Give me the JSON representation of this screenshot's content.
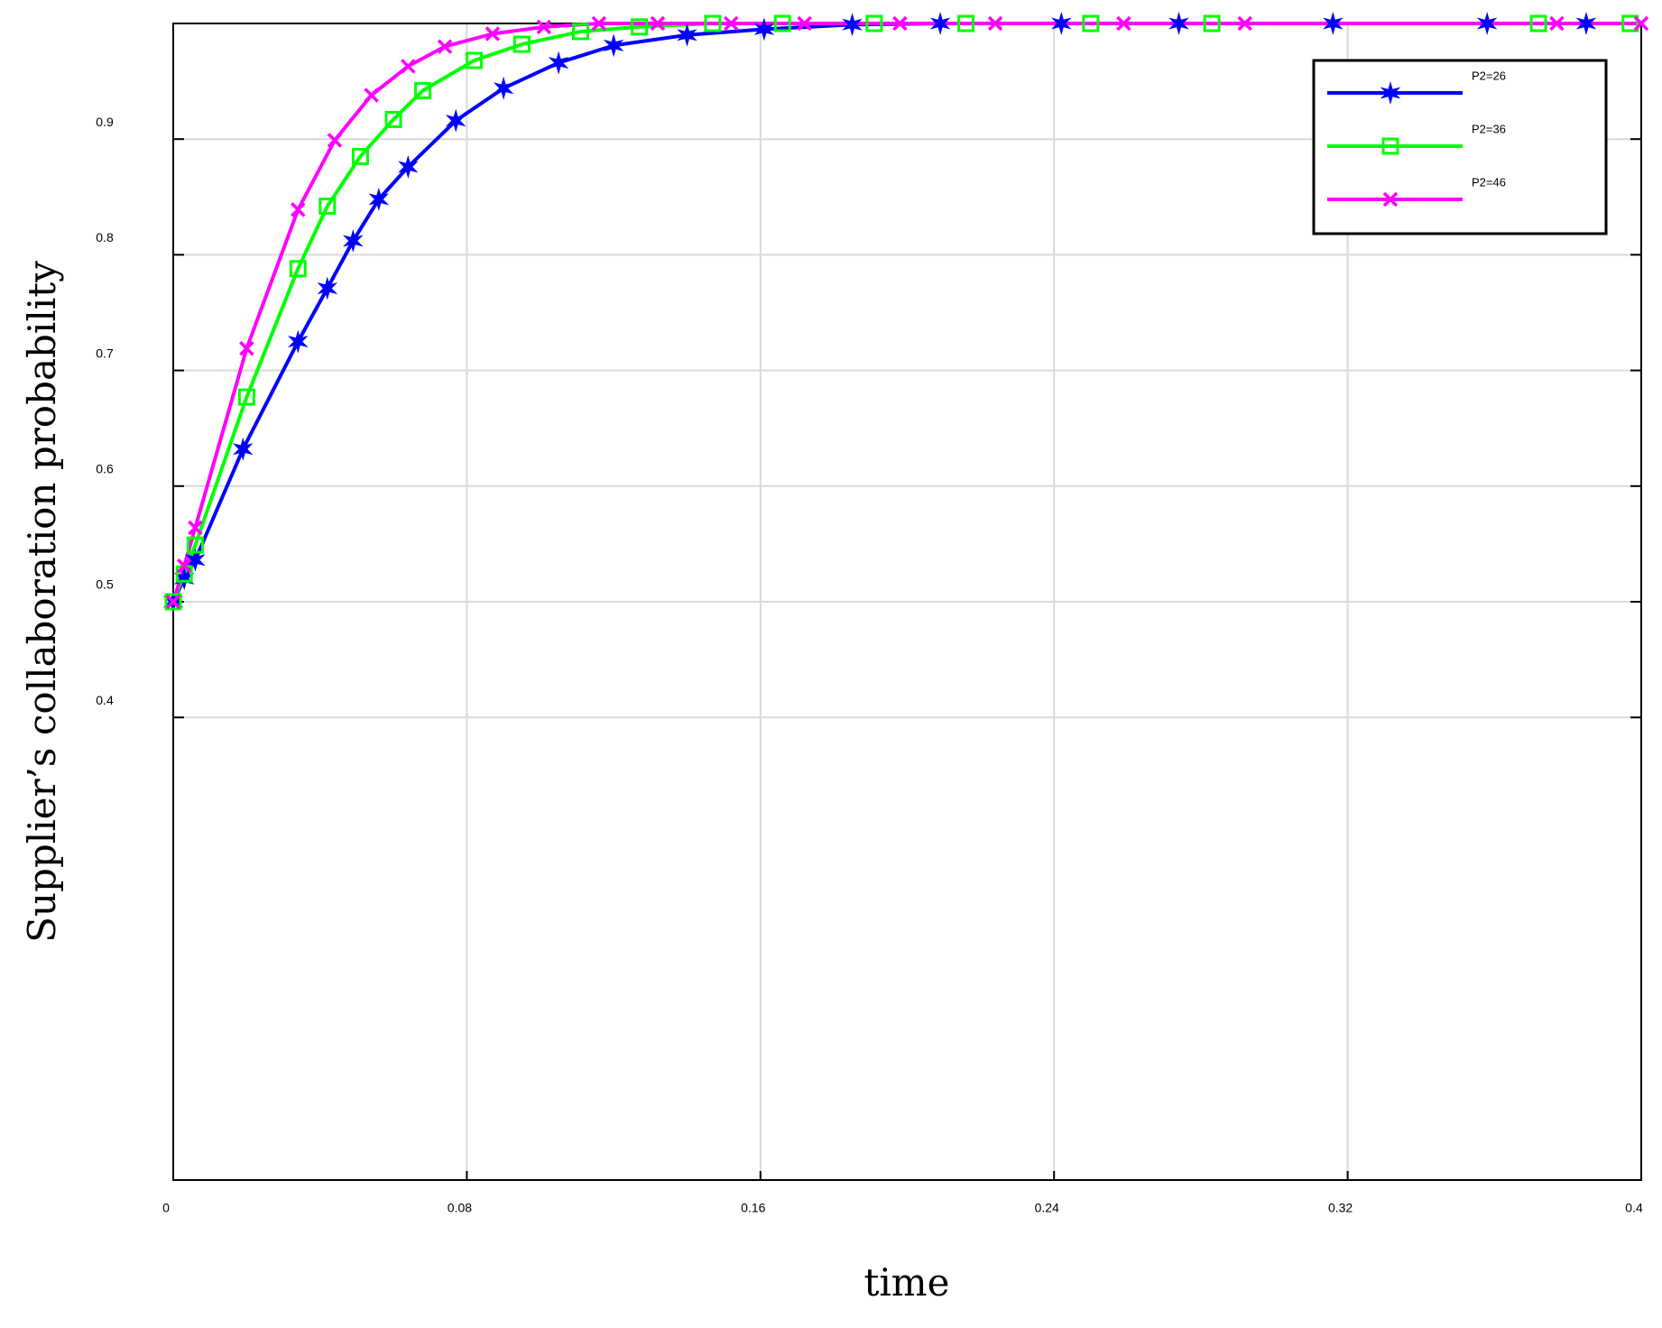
{
  "chart_data": {
    "type": "line",
    "xlabel": "time",
    "ylabel": "Supplier’s collaboration probability",
    "xlim": [
      0,
      0.4
    ],
    "ylim": [
      0,
      1
    ],
    "xticks": [
      0,
      0.08,
      0.16,
      0.24,
      0.32,
      0.4
    ],
    "yticks": [
      0.4,
      0.5,
      0.6,
      0.7,
      0.8,
      0.9
    ],
    "grid": true,
    "legend": "upper right",
    "series": [
      {
        "name": "P2=26",
        "color": "#0000ff",
        "marker": "star",
        "x": [
          0,
          0.003,
          0.006,
          0.019,
          0.034,
          0.042,
          0.049,
          0.056,
          0.064,
          0.077,
          0.09,
          0.105,
          0.12,
          0.14,
          0.161,
          0.185,
          0.209,
          0.242,
          0.274,
          0.316,
          0.358,
          0.385
        ],
        "values": [
          0.5,
          0.52,
          0.536,
          0.632,
          0.725,
          0.771,
          0.812,
          0.848,
          0.876,
          0.916,
          0.944,
          0.966,
          0.981,
          0.99,
          0.995,
          0.999,
          1.0,
          1.0,
          1.0,
          1.0,
          1.0,
          1.0
        ]
      },
      {
        "name": "P2=36",
        "color": "#00ff00",
        "marker": "square",
        "x": [
          0,
          0.003,
          0.006,
          0.02,
          0.034,
          0.042,
          0.051,
          0.06,
          0.068,
          0.082,
          0.095,
          0.111,
          0.127,
          0.147,
          0.166,
          0.191,
          0.216,
          0.25,
          0.283,
          0.372,
          0.397
        ],
        "values": [
          0.5,
          0.524,
          0.549,
          0.677,
          0.788,
          0.842,
          0.885,
          0.917,
          0.942,
          0.968,
          0.982,
          0.993,
          0.997,
          1.0,
          1.0,
          1.0,
          1.0,
          1.0,
          1.0,
          1.0,
          1.0
        ]
      },
      {
        "name": "P2=46",
        "color": "#ff00ff",
        "marker": "x",
        "x": [
          0,
          0.003,
          0.006,
          0.02,
          0.034,
          0.044,
          0.054,
          0.064,
          0.074,
          0.087,
          0.101,
          0.116,
          0.132,
          0.152,
          0.172,
          0.198,
          0.224,
          0.259,
          0.292,
          0.377,
          0.4
        ],
        "values": [
          0.5,
          0.531,
          0.564,
          0.719,
          0.839,
          0.899,
          0.938,
          0.963,
          0.98,
          0.991,
          0.997,
          1.0,
          1.0,
          1.0,
          1.0,
          1.0,
          1.0,
          1.0,
          1.0,
          1.0,
          1.0
        ]
      }
    ]
  }
}
